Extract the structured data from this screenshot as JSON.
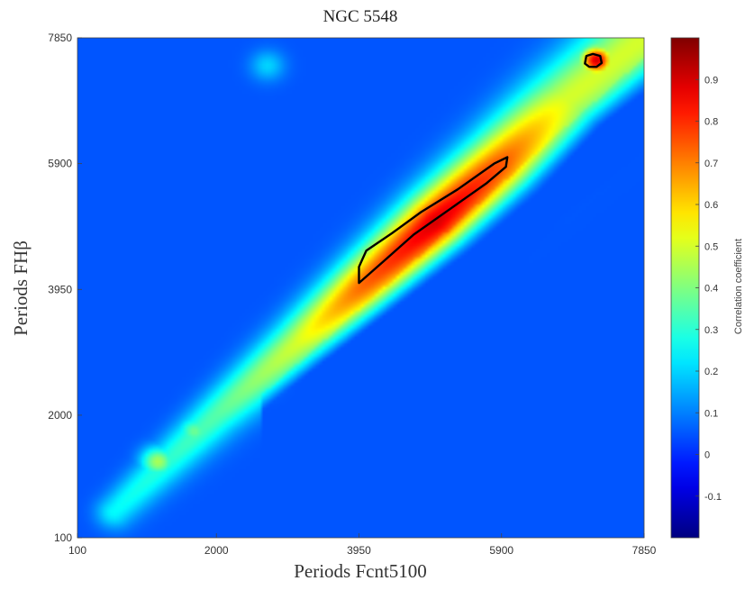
{
  "chart_data": {
    "type": "heatmap",
    "title": "NGC 5548",
    "xlabel": "Periods Fcnt5100",
    "ylabel": "Periods FHβ",
    "xlim": [
      100,
      7850
    ],
    "ylim": [
      100,
      7850
    ],
    "x_ticks": [
      "100",
      "2000",
      "3950",
      "5900",
      "7850"
    ],
    "y_ticks": [
      "100",
      "2000",
      "3950",
      "5900",
      "7850"
    ],
    "colorbar": {
      "label": "Correlation coefficient",
      "range": [
        -0.2,
        1.0
      ],
      "ticks": [
        "-0.1",
        "0",
        "0.1",
        "0.2",
        "0.3",
        "0.4",
        "0.5",
        "0.6",
        "0.7",
        "0.8",
        "0.9"
      ],
      "colormap": "jet"
    },
    "background_value": 0.05,
    "ridge": {
      "path": [
        [
          600,
          500
        ],
        [
          2000,
          2000
        ],
        [
          3100,
          3100
        ],
        [
          3950,
          3950
        ],
        [
          5000,
          5000
        ],
        [
          5900,
          5900
        ],
        [
          6800,
          6900
        ],
        [
          7850,
          7850
        ]
      ],
      "peak_values": [
        0.25,
        0.35,
        0.5,
        0.72,
        0.9,
        0.75,
        0.5,
        0.5
      ]
    },
    "features": [
      {
        "x": 1200,
        "y": 1280,
        "value": 0.45
      },
      {
        "x": 1700,
        "y": 1750,
        "value": 0.38
      },
      {
        "x": 2600,
        "y": 2600,
        "value": 0.28
      },
      {
        "x": 3000,
        "y": 3300,
        "value": 0.3
      },
      {
        "x": 2700,
        "y": 7420,
        "value": 0.2
      },
      {
        "x": 7200,
        "y": 7500,
        "value": 0.9
      }
    ],
    "contours": [
      {
        "level": 0.8,
        "points": [
          [
            3950,
            4050
          ],
          [
            3950,
            4300
          ],
          [
            4050,
            4550
          ],
          [
            4400,
            4820
          ],
          [
            4800,
            5150
          ],
          [
            5300,
            5500
          ],
          [
            5800,
            5900
          ],
          [
            5980,
            6000
          ],
          [
            5960,
            5850
          ],
          [
            5700,
            5600
          ],
          [
            5200,
            5200
          ],
          [
            4700,
            4800
          ],
          [
            4300,
            4400
          ],
          [
            4050,
            4150
          ]
        ]
      },
      {
        "level": 0.8,
        "points": [
          [
            7040,
            7450
          ],
          [
            7060,
            7570
          ],
          [
            7150,
            7600
          ],
          [
            7250,
            7570
          ],
          [
            7270,
            7460
          ],
          [
            7200,
            7400
          ],
          [
            7100,
            7400
          ]
        ]
      }
    ]
  }
}
